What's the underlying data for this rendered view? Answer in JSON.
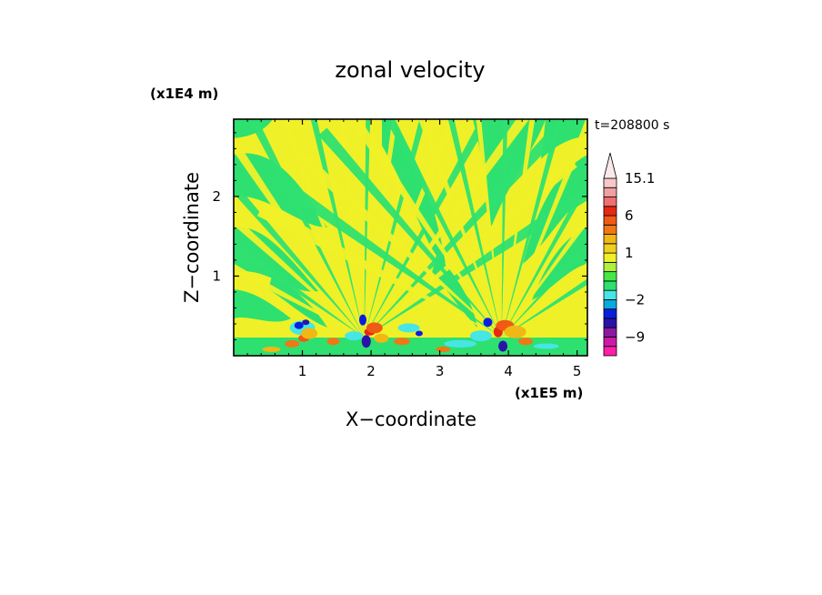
{
  "chart_data": {
    "type": "heatmap",
    "title": "zonal velocity",
    "time_label": "t=208800 s",
    "xlabel": "X−coordinate",
    "ylabel": "Z−coordinate",
    "x_unit": "(x1E5 m)",
    "y_unit": "(x1E4 m)",
    "xlim": [
      0,
      5.15
    ],
    "ylim": [
      0,
      2.97
    ],
    "x_ticks": [
      1,
      2,
      3,
      4,
      5
    ],
    "y_ticks": [
      1,
      2
    ],
    "x_tick_labels": [
      "1",
      "2",
      "3",
      "4",
      "5"
    ],
    "y_tick_labels": [
      "1",
      "2"
    ],
    "colorbar": {
      "levels": [
        -12,
        -10.5,
        -9,
        -7.5,
        -6,
        -4,
        -2,
        -1,
        -0.5,
        0,
        0.5,
        1,
        1.5,
        2,
        4,
        6,
        8,
        10,
        12.5,
        15.1
      ],
      "colors": [
        "#ff1faa",
        "#cc1aa8",
        "#8a1aa0",
        "#2a14a8",
        "#0a1ee0",
        "#0aa8dc",
        "#46e6e6",
        "#2ee070",
        "#46e846",
        "#aef03c",
        "#f0f028",
        "#f0d020",
        "#f0b814",
        "#f07814",
        "#f05a14",
        "#e62814",
        "#f07070",
        "#f0a0a0",
        "#f8c8c8"
      ],
      "tick_labels": [
        "15.1",
        "6",
        "1",
        "−2",
        "−9"
      ],
      "tick_levels": [
        15.1,
        6,
        1,
        -2,
        -9
      ],
      "extend": "max"
    },
    "background_color": "#f0f028",
    "secondary_color": "#2ee070",
    "features": {
      "ray_fans_centered_x": [
        1.9,
        3.9
      ],
      "strong_negative_spots_x": [
        1.0,
        1.9,
        3.7,
        3.9
      ],
      "strong_negative_height_range": [
        0.0,
        0.6
      ]
    }
  }
}
